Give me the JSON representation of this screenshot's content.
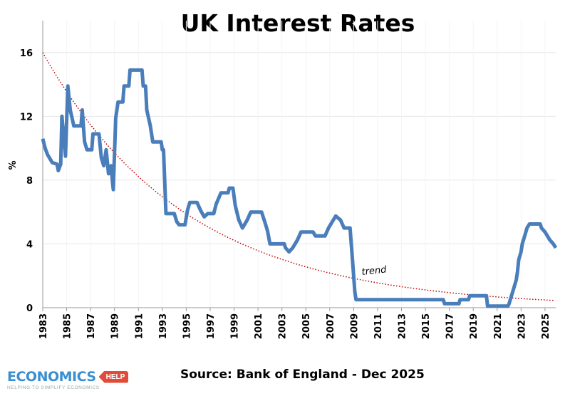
{
  "chart_data": {
    "type": "line",
    "title": "UK Interest Rates",
    "ylabel": "%",
    "xlabel": "",
    "xlim": [
      1983,
      2025.9
    ],
    "ylim": [
      0,
      18
    ],
    "yticks": [
      0,
      4,
      8,
      12,
      16
    ],
    "xticks": [
      "1983",
      "1985",
      "1987",
      "1989",
      "1991",
      "1993",
      "1995",
      "1997",
      "1999",
      "2001",
      "2003",
      "2005",
      "2007",
      "2009",
      "2011",
      "2013",
      "2015",
      "2017",
      "2019",
      "2021",
      "2023",
      "2025"
    ],
    "grid": "horizontal",
    "series": [
      {
        "color": "#4a7ebb",
        "points": [
          [
            1983.0,
            10.6
          ],
          [
            1983.2,
            10.0
          ],
          [
            1983.4,
            9.6
          ],
          [
            1983.8,
            9.1
          ],
          [
            1984.2,
            9.0
          ],
          [
            1984.3,
            8.6
          ],
          [
            1984.5,
            9.0
          ],
          [
            1984.6,
            12.0
          ],
          [
            1984.9,
            9.5
          ],
          [
            1985.1,
            13.9
          ],
          [
            1985.3,
            12.4
          ],
          [
            1985.6,
            11.4
          ],
          [
            1986.2,
            11.4
          ],
          [
            1986.3,
            12.4
          ],
          [
            1986.5,
            10.4
          ],
          [
            1986.7,
            9.9
          ],
          [
            1987.1,
            9.9
          ],
          [
            1987.2,
            10.9
          ],
          [
            1987.7,
            10.9
          ],
          [
            1987.9,
            9.4
          ],
          [
            1988.1,
            8.9
          ],
          [
            1988.3,
            9.9
          ],
          [
            1988.5,
            8.4
          ],
          [
            1988.7,
            8.9
          ],
          [
            1988.9,
            7.4
          ],
          [
            1989.1,
            11.9
          ],
          [
            1989.3,
            12.9
          ],
          [
            1989.7,
            12.9
          ],
          [
            1989.8,
            13.9
          ],
          [
            1990.2,
            13.9
          ],
          [
            1990.3,
            14.9
          ],
          [
            1991.3,
            14.9
          ],
          [
            1991.4,
            13.9
          ],
          [
            1991.6,
            13.9
          ],
          [
            1991.7,
            12.4
          ],
          [
            1992.0,
            11.4
          ],
          [
            1992.2,
            10.4
          ],
          [
            1992.9,
            10.4
          ],
          [
            1993.0,
            9.9
          ],
          [
            1993.1,
            9.9
          ],
          [
            1993.3,
            5.9
          ],
          [
            1994.0,
            5.9
          ],
          [
            1994.2,
            5.4
          ],
          [
            1994.4,
            5.2
          ],
          [
            1994.9,
            5.2
          ],
          [
            1995.1,
            6.1
          ],
          [
            1995.3,
            6.6
          ],
          [
            1995.9,
            6.6
          ],
          [
            1996.2,
            6.1
          ],
          [
            1996.5,
            5.7
          ],
          [
            1996.8,
            5.9
          ],
          [
            1997.3,
            5.9
          ],
          [
            1997.5,
            6.5
          ],
          [
            1997.9,
            7.2
          ],
          [
            1998.5,
            7.2
          ],
          [
            1998.6,
            7.5
          ],
          [
            1998.9,
            7.5
          ],
          [
            1999.1,
            6.4
          ],
          [
            1999.4,
            5.5
          ],
          [
            1999.7,
            5.0
          ],
          [
            2000.1,
            5.5
          ],
          [
            2000.4,
            6.0
          ],
          [
            2001.3,
            6.0
          ],
          [
            2001.6,
            5.3
          ],
          [
            2001.8,
            4.8
          ],
          [
            2002.0,
            4.0
          ],
          [
            2003.2,
            4.0
          ],
          [
            2003.3,
            3.75
          ],
          [
            2003.6,
            3.5
          ],
          [
            2003.9,
            3.75
          ],
          [
            2004.3,
            4.25
          ],
          [
            2004.6,
            4.75
          ],
          [
            2005.6,
            4.75
          ],
          [
            2005.8,
            4.5
          ],
          [
            2006.6,
            4.5
          ],
          [
            2006.9,
            5.0
          ],
          [
            2007.3,
            5.5
          ],
          [
            2007.5,
            5.75
          ],
          [
            2007.9,
            5.5
          ],
          [
            2008.2,
            5.0
          ],
          [
            2008.7,
            5.0
          ],
          [
            2008.9,
            3.0
          ],
          [
            2009.1,
            1.0
          ],
          [
            2009.2,
            0.5
          ],
          [
            2016.5,
            0.5
          ],
          [
            2016.6,
            0.25
          ],
          [
            2017.8,
            0.25
          ],
          [
            2017.9,
            0.5
          ],
          [
            2018.6,
            0.5
          ],
          [
            2018.7,
            0.75
          ],
          [
            2020.1,
            0.75
          ],
          [
            2020.2,
            0.1
          ],
          [
            2021.9,
            0.1
          ],
          [
            2022.0,
            0.25
          ],
          [
            2022.2,
            0.75
          ],
          [
            2022.4,
            1.25
          ],
          [
            2022.6,
            1.75
          ],
          [
            2022.7,
            2.25
          ],
          [
            2022.8,
            3.0
          ],
          [
            2023.0,
            3.5
          ],
          [
            2023.1,
            4.0
          ],
          [
            2023.3,
            4.5
          ],
          [
            2023.5,
            5.0
          ],
          [
            2023.7,
            5.25
          ],
          [
            2024.6,
            5.25
          ],
          [
            2024.7,
            5.0
          ],
          [
            2025.0,
            4.75
          ],
          [
            2025.2,
            4.5
          ],
          [
            2025.4,
            4.25
          ],
          [
            2025.7,
            4.0
          ],
          [
            2025.9,
            3.75
          ]
        ]
      }
    ],
    "trendline": {
      "label": "trend",
      "type": "exponential",
      "color": "#c00000",
      "start": [
        1983,
        16
      ],
      "end": [
        2025.9,
        0.45
      ]
    }
  },
  "footer": {
    "source": "Source: Bank of England - Dec 2025",
    "logo_main": "ECONOMICS",
    "logo_tag": "HELP",
    "logo_sub": "HELPING TO SIMPLIFY ECONOMICS"
  }
}
